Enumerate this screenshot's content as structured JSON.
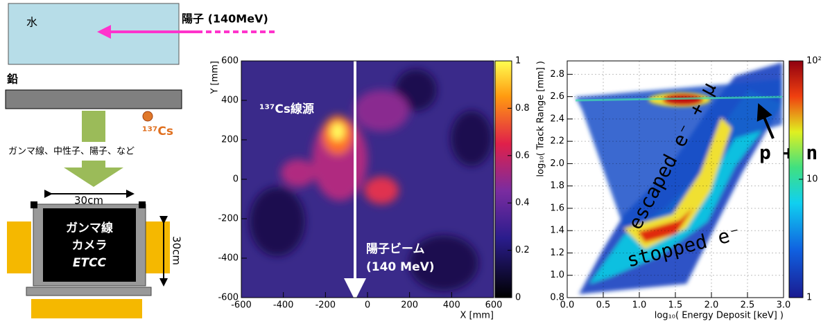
{
  "schematic": {
    "water": "水",
    "proton": "陽子 (140MeV)",
    "lead": "鉛",
    "cs_source": "¹³⁷Cs",
    "emissions": "ガンマ線、中性子、陽子、など",
    "width": "30cm",
    "height": "30cm",
    "camera": [
      "ガンマ線",
      "カメラ",
      "ETCC"
    ]
  },
  "chart_data": [
    {
      "type": "heatmap",
      "xlabel": "X [mm]",
      "ylabel": "Y [mm]",
      "xlim": [
        -600,
        600
      ],
      "xticks": [
        -600,
        -400,
        -200,
        0,
        200,
        400,
        600
      ],
      "ylim": [
        -600,
        600
      ],
      "yticks": [
        -600,
        -400,
        -200,
        0,
        200,
        400,
        600
      ],
      "zlim": [
        0,
        1
      ],
      "zticks": [
        0,
        0.2,
        0.4,
        0.6,
        0.8,
        1
      ],
      "zlog": false,
      "grid": false,
      "annotations": [
        "¹³⁷Cs線源",
        "陽子ビーム",
        "(140 MeV)"
      ]
    },
    {
      "type": "heatmap",
      "xlabel": "log₁₀( Energy Deposit [keV] )",
      "ylabel": "log₁₀( Track Range [mm] )",
      "xlim": [
        0,
        3
      ],
      "xticks": [
        {
          "value": 0,
          "label": "0.0"
        },
        0.5,
        {
          "value": 1,
          "label": "1.0"
        },
        1.5,
        {
          "value": 2,
          "label": "2.0"
        },
        2.5,
        {
          "value": 3,
          "label": "3.0"
        }
      ],
      "ylim": [
        0.8,
        2.92
      ],
      "yticks": [
        0.8,
        {
          "value": 1,
          "label": "1.0"
        },
        1.2,
        1.4,
        1.6,
        1.8,
        {
          "value": 2,
          "label": "2.0"
        },
        2.2,
        2.4,
        2.6,
        2.8
      ],
      "zlim": [
        1,
        100
      ],
      "zticks": [
        1,
        10,
        {
          "value": 100,
          "label": "10²"
        }
      ],
      "zlog": true,
      "grid": true,
      "annotations": [
        "escaped e⁻ + μ",
        "stopped e⁻",
        "p + n"
      ]
    }
  ]
}
